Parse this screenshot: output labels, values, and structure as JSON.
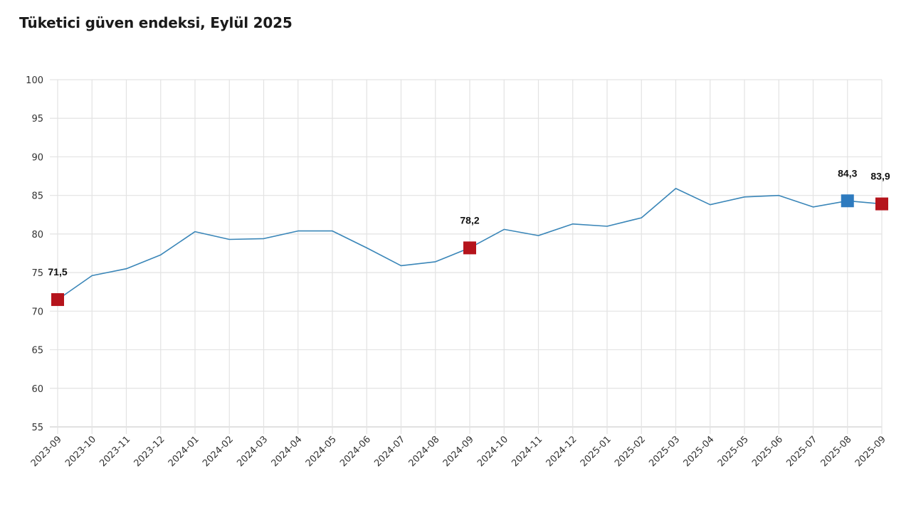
{
  "header": {
    "title": "Tüketici güven endeksi, Eylül 2025"
  },
  "colors": {
    "line": "#3a86b8",
    "highlight_red": "#b5141c",
    "highlight_blue": "#2e7bbf",
    "grid": "#e3e3e3"
  },
  "chart_data": {
    "type": "line",
    "title": "Tüketici güven endeksi, Eylül 2025",
    "xlabel": "",
    "ylabel": "",
    "ylim": [
      55,
      100
    ],
    "yticks": [
      55,
      60,
      65,
      70,
      75,
      80,
      85,
      90,
      95,
      100
    ],
    "grid": true,
    "legend": "none",
    "categories": [
      "2023-09",
      "2023-10",
      "2023-11",
      "2023-12",
      "2024-01",
      "2024-02",
      "2024-03",
      "2024-04",
      "2024-05",
      "2024-06",
      "2024-07",
      "2024-08",
      "2024-09",
      "2024-10",
      "2024-11",
      "2024-12",
      "2025-01",
      "2025-02",
      "2025-03",
      "2025-04",
      "2025-05",
      "2025-06",
      "2025-07",
      "2025-08",
      "2025-09"
    ],
    "series": [
      {
        "name": "Tüketici güven endeksi",
        "values": [
          71.5,
          74.6,
          75.5,
          77.3,
          80.3,
          79.3,
          79.4,
          80.4,
          80.4,
          78.2,
          75.9,
          76.4,
          78.2,
          80.6,
          79.8,
          81.3,
          81.0,
          82.1,
          85.9,
          83.8,
          84.8,
          85.0,
          83.5,
          84.3,
          83.9
        ]
      }
    ],
    "annotations": [
      {
        "category": "2023-09",
        "label": "71,5",
        "marker": "square",
        "color": "red"
      },
      {
        "category": "2024-09",
        "label": "78,2",
        "marker": "square",
        "color": "red"
      },
      {
        "category": "2025-08",
        "label": "84,3",
        "marker": "square",
        "color": "blue"
      },
      {
        "category": "2025-09",
        "label": "83,9",
        "marker": "square",
        "color": "red"
      }
    ]
  }
}
